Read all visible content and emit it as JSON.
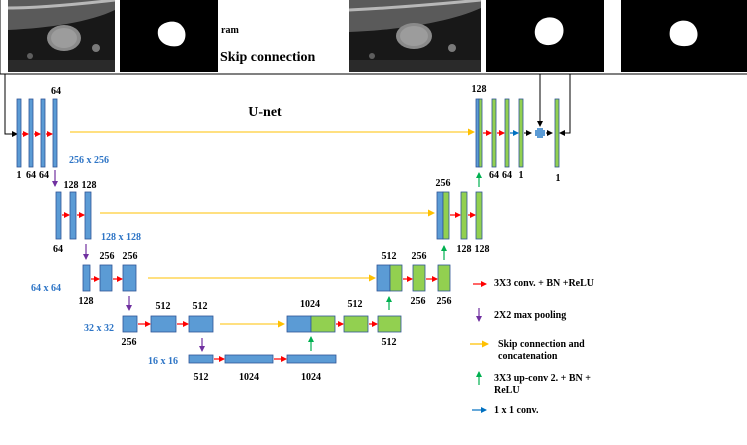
{
  "header": {
    "title_fragment": "ram",
    "skip_title": "Skip connection",
    "unet_title": "U-net"
  },
  "resolutions": {
    "r256": "256 x 256",
    "r128": "128 x 128",
    "r64": "64 x 64",
    "r32": "32 x 32",
    "r16": "16 x 16"
  },
  "channels": {
    "enc1_top": "64",
    "enc1_bottom": [
      "1",
      "64",
      "64"
    ],
    "enc2_top": [
      "128",
      "128"
    ],
    "enc2_bottom": "64",
    "enc3_top": [
      "256",
      "256"
    ],
    "enc3_bottom": "128",
    "enc4_top": [
      "512",
      "512"
    ],
    "enc4_bottom": "256",
    "bott_bottom": [
      "512",
      "1024",
      "1024"
    ],
    "dec4_top": [
      "1024",
      "512"
    ],
    "dec4_bottom": "512",
    "dec3_top": [
      "512",
      "256"
    ],
    "dec3_bottom": [
      "256",
      "256"
    ],
    "dec2_top": "256",
    "dec2_bottom": [
      "128",
      "128"
    ],
    "dec1_top": "128",
    "dec1_bottom": [
      "64",
      "64",
      "1"
    ],
    "out_bottom": "1"
  },
  "legend": [
    {
      "label": "3X3 conv. + BN +ReLU",
      "color": "#ff0000"
    },
    {
      "label": "2X2 max pooling",
      "color": "#7030a0"
    },
    {
      "label": "Skip connection and concatenation",
      "color": "#ffc000"
    },
    {
      "label": "3X3 up-conv 2. + BN + ReLU",
      "color": "#00b050"
    },
    {
      "label": "1 x 1 conv.",
      "color": "#0070c0"
    }
  ],
  "colors": {
    "encoder_block": "#5b9bd5",
    "decoder_block": "#92d050",
    "block_border": "#2f5597",
    "label_blue": "#2e75c6"
  }
}
